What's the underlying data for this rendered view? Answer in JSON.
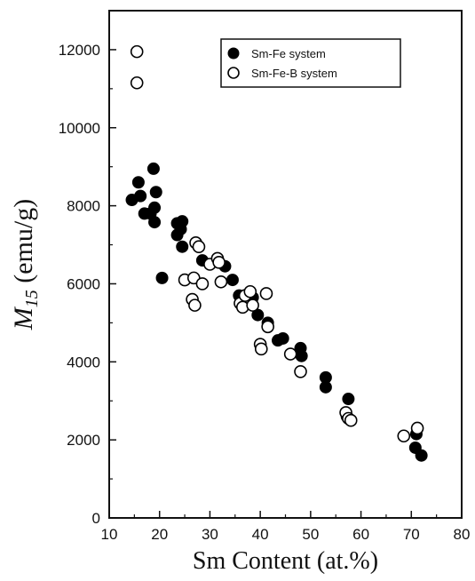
{
  "chart_data": {
    "type": "scatter",
    "xlabel": "Sm Content (at.%)",
    "ylabel": {
      "main": "M",
      "subscript": "15",
      "unit": " (emu/g)"
    },
    "xlim": [
      10,
      80
    ],
    "ylim": [
      0,
      13000
    ],
    "x_ticks": [
      10,
      20,
      30,
      40,
      50,
      60,
      70,
      80
    ],
    "y_ticks": [
      0,
      2000,
      4000,
      6000,
      8000,
      10000,
      12000
    ],
    "grid": false,
    "legend_position": "top-right",
    "series": [
      {
        "name": "Sm-Fe system",
        "marker": "filled-circle",
        "color": "#000000",
        "points": [
          {
            "x": 14.5,
            "y": 8150
          },
          {
            "x": 15.8,
            "y": 8600
          },
          {
            "x": 16.2,
            "y": 8250
          },
          {
            "x": 17.0,
            "y": 7800
          },
          {
            "x": 18.8,
            "y": 8950
          },
          {
            "x": 19.3,
            "y": 8350
          },
          {
            "x": 19.0,
            "y": 7950
          },
          {
            "x": 18.2,
            "y": 7800
          },
          {
            "x": 19.0,
            "y": 7580
          },
          {
            "x": 20.5,
            "y": 6150
          },
          {
            "x": 23.5,
            "y": 7550
          },
          {
            "x": 24.5,
            "y": 7600
          },
          {
            "x": 24.2,
            "y": 7400
          },
          {
            "x": 23.5,
            "y": 7250
          },
          {
            "x": 24.5,
            "y": 6950
          },
          {
            "x": 28.5,
            "y": 6600
          },
          {
            "x": 33.0,
            "y": 6450
          },
          {
            "x": 34.5,
            "y": 6100
          },
          {
            "x": 35.8,
            "y": 5700
          },
          {
            "x": 38.5,
            "y": 5650
          },
          {
            "x": 39.5,
            "y": 5200
          },
          {
            "x": 41.5,
            "y": 5000
          },
          {
            "x": 43.5,
            "y": 4550
          },
          {
            "x": 44.5,
            "y": 4600
          },
          {
            "x": 48.0,
            "y": 4350
          },
          {
            "x": 48.2,
            "y": 4150
          },
          {
            "x": 53.0,
            "y": 3600
          },
          {
            "x": 53.0,
            "y": 3350
          },
          {
            "x": 57.5,
            "y": 3050
          },
          {
            "x": 57.2,
            "y": 2600
          },
          {
            "x": 71.0,
            "y": 2150
          },
          {
            "x": 70.8,
            "y": 1800
          },
          {
            "x": 72.0,
            "y": 1600
          }
        ]
      },
      {
        "name": "Sm-Fe-B system",
        "marker": "open-circle",
        "color": "#000000",
        "points": [
          {
            "x": 15.5,
            "y": 11950
          },
          {
            "x": 15.5,
            "y": 11150
          },
          {
            "x": 25.0,
            "y": 6100
          },
          {
            "x": 26.5,
            "y": 5600
          },
          {
            "x": 26.8,
            "y": 6150
          },
          {
            "x": 27.0,
            "y": 5450
          },
          {
            "x": 27.2,
            "y": 7050
          },
          {
            "x": 27.8,
            "y": 6950
          },
          {
            "x": 28.5,
            "y": 6000
          },
          {
            "x": 30.0,
            "y": 6500
          },
          {
            "x": 31.5,
            "y": 6650
          },
          {
            "x": 31.8,
            "y": 6550
          },
          {
            "x": 32.2,
            "y": 6050
          },
          {
            "x": 36.0,
            "y": 5500
          },
          {
            "x": 36.5,
            "y": 5400
          },
          {
            "x": 37.0,
            "y": 5700
          },
          {
            "x": 38.0,
            "y": 5800
          },
          {
            "x": 38.5,
            "y": 5450
          },
          {
            "x": 40.0,
            "y": 4450
          },
          {
            "x": 40.2,
            "y": 4330
          },
          {
            "x": 41.2,
            "y": 5750
          },
          {
            "x": 41.5,
            "y": 4900
          },
          {
            "x": 46.0,
            "y": 4200
          },
          {
            "x": 48.0,
            "y": 3750
          },
          {
            "x": 57.0,
            "y": 2700
          },
          {
            "x": 57.5,
            "y": 2550
          },
          {
            "x": 58.0,
            "y": 2500
          },
          {
            "x": 68.5,
            "y": 2100
          },
          {
            "x": 71.2,
            "y": 2300
          }
        ]
      }
    ]
  }
}
